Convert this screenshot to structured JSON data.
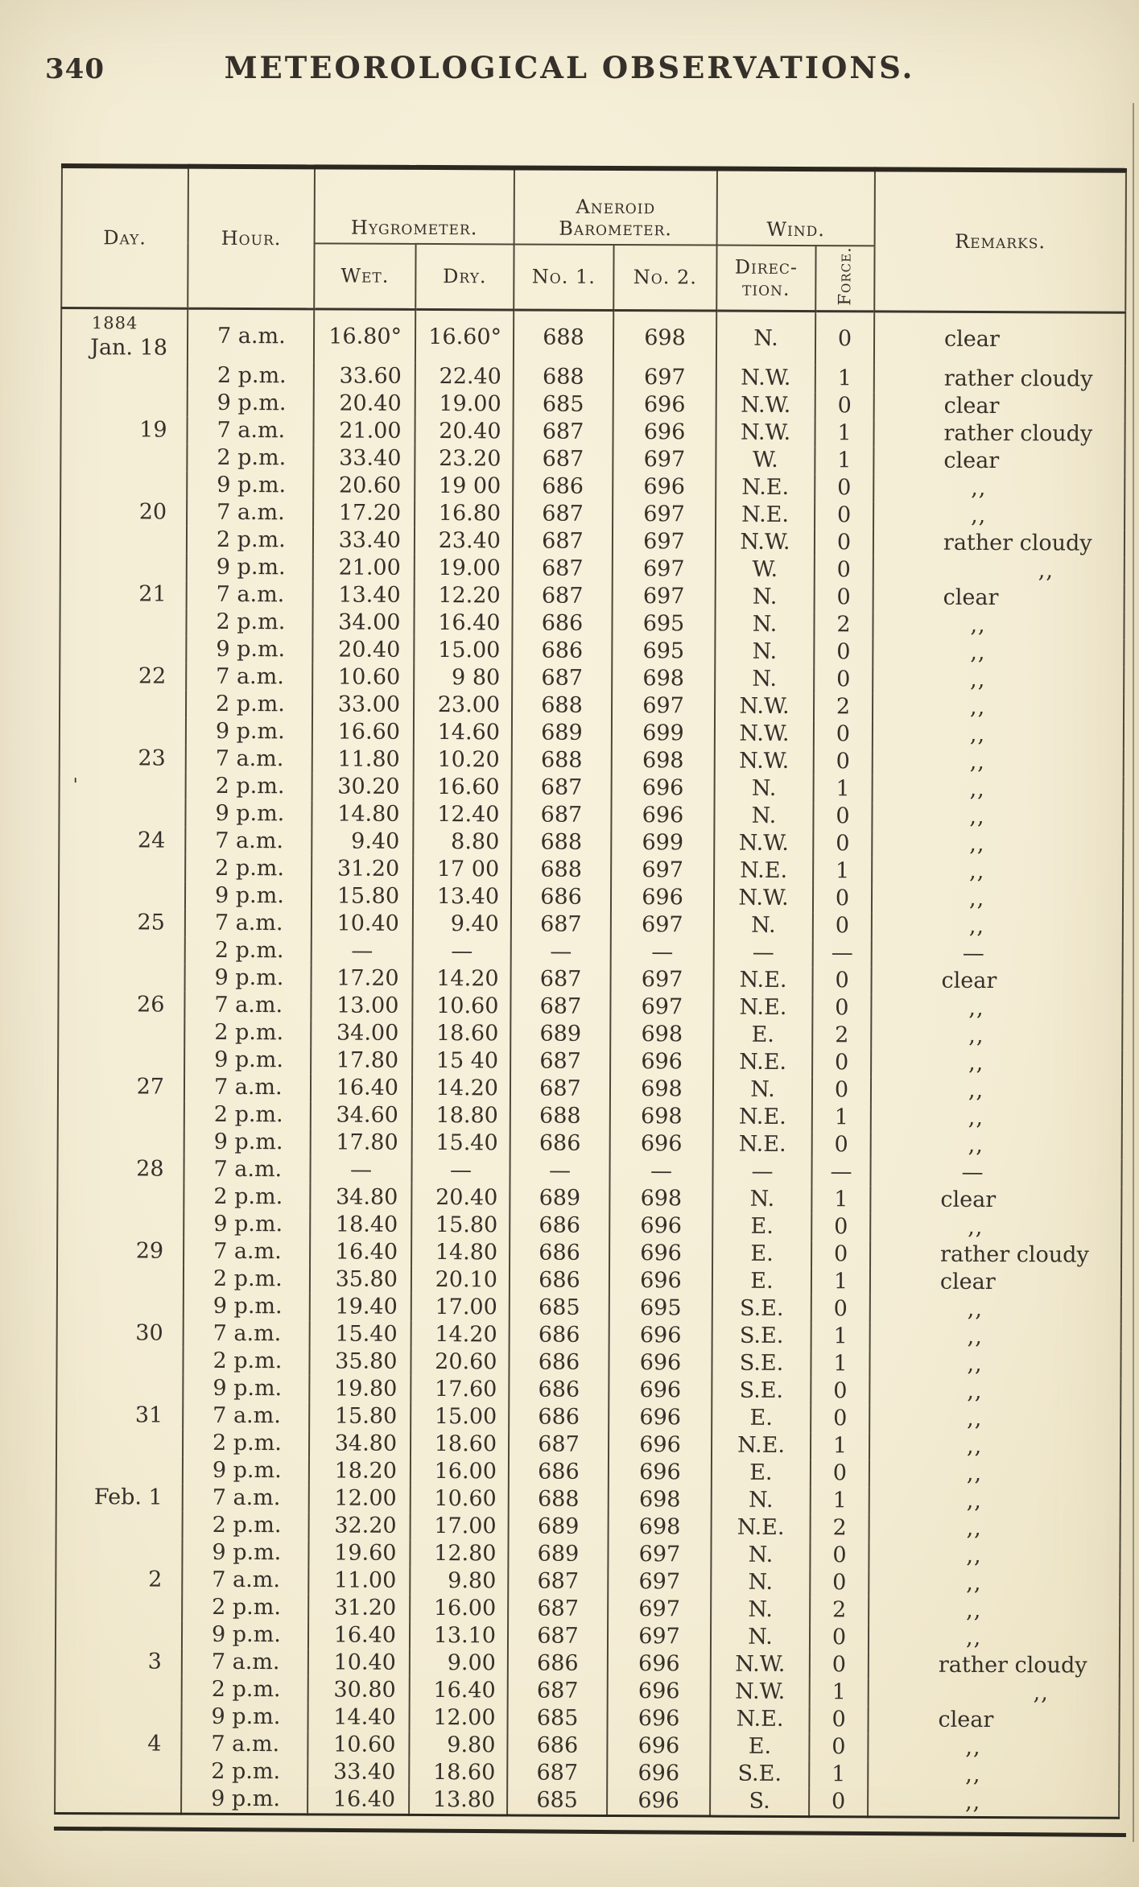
{
  "page": {
    "number": "340",
    "title": "METEOROLOGICAL OBSERVATIONS."
  },
  "table": {
    "headers": {
      "day": "Day.",
      "hour": "Hour.",
      "hygrometer": "Hygrometer.",
      "wet": "Wet.",
      "dry": "Dry.",
      "aneroid_l1": "Aneroid",
      "aneroid_l2": "Barometer.",
      "no1": "No. 1.",
      "no2": "No. 2.",
      "wind": "Wind.",
      "direction_l1": "Direc-",
      "direction_l2": "tion.",
      "force": "Force.",
      "remarks": "Remarks."
    },
    "rows": [
      {
        "y": "1884",
        "d": "Jan. 18",
        "h": "7 a.m.",
        "w": "16.80°",
        "dr": "16.60°",
        "n1": "688",
        "n2": "698",
        "di": "N.",
        "f": "0",
        "r": "clear"
      },
      {
        "d": "",
        "h": "2 p.m.",
        "w": "33.60",
        "dr": "22.40",
        "n1": "688",
        "n2": "697",
        "di": "N.W.",
        "f": "1",
        "r": "rather cloudy"
      },
      {
        "d": "",
        "h": "9 p.m.",
        "w": "20.40",
        "dr": "19.00",
        "n1": "685",
        "n2": "696",
        "di": "N.W.",
        "f": "0",
        "r": "clear"
      },
      {
        "d": "19",
        "h": "7 a.m.",
        "w": "21.00",
        "dr": "20.40",
        "n1": "687",
        "n2": "696",
        "di": "N.W.",
        "f": "1",
        "r": "rather cloudy"
      },
      {
        "d": "",
        "h": "2 p.m.",
        "w": "33.40",
        "dr": "23.20",
        "n1": "687",
        "n2": "697",
        "di": "W.",
        "f": "1",
        "r": "clear"
      },
      {
        "d": "",
        "h": "9 p.m.",
        "w": "20.60",
        "dr": "19 00",
        "n1": "686",
        "n2": "696",
        "di": "N.E.",
        "f": "0",
        "r": ",,"
      },
      {
        "d": "20",
        "h": "7 a.m.",
        "w": "17.20",
        "dr": "16.80",
        "n1": "687",
        "n2": "697",
        "di": "N.E.",
        "f": "0",
        "r": ",,"
      },
      {
        "d": "",
        "h": "2 p.m.",
        "w": "33.40",
        "dr": "23.40",
        "n1": "687",
        "n2": "697",
        "di": "N.W.",
        "f": "0",
        "r": "rather cloudy"
      },
      {
        "d": "",
        "h": "9 p.m.",
        "w": "21.00",
        "dr": "19.00",
        "n1": "687",
        "n2": "697",
        "di": "W.",
        "f": "0",
        "r": ",,",
        "ri": 1
      },
      {
        "d": "21",
        "h": "7 a.m.",
        "w": "13.40",
        "dr": "12.20",
        "n1": "687",
        "n2": "697",
        "di": "N.",
        "f": "0",
        "r": "clear"
      },
      {
        "d": "",
        "h": "2 p.m.",
        "w": "34.00",
        "dr": "16.40",
        "n1": "686",
        "n2": "695",
        "di": "N.",
        "f": "2",
        "r": ",,"
      },
      {
        "d": "",
        "h": "9 p.m.",
        "w": "20.40",
        "dr": "15.00",
        "n1": "686",
        "n2": "695",
        "di": "N.",
        "f": "0",
        "r": ",,"
      },
      {
        "d": "22",
        "h": "7 a.m.",
        "w": "10.60",
        "dr": "9 80",
        "n1": "687",
        "n2": "698",
        "di": "N.",
        "f": "0",
        "r": ",,"
      },
      {
        "d": "",
        "h": "2 p.m.",
        "w": "33.00",
        "dr": "23.00",
        "n1": "688",
        "n2": "697",
        "di": "N.W.",
        "f": "2",
        "r": ",,"
      },
      {
        "d": "",
        "h": "9 p.m.",
        "w": "16.60",
        "dr": "14.60",
        "n1": "689",
        "n2": "699",
        "di": "N.W.",
        "f": "0",
        "r": ",,"
      },
      {
        "d": "23",
        "h": "7 a.m.",
        "w": "11.80",
        "dr": "10.20",
        "n1": "688",
        "n2": "698",
        "di": "N.W.",
        "f": "0",
        "r": ",,"
      },
      {
        "d": "",
        "m": "'",
        "h": "2 p.m.",
        "w": "30.20",
        "dr": "16.60",
        "n1": "687",
        "n2": "696",
        "di": "N.",
        "f": "1",
        "r": ",,"
      },
      {
        "d": "",
        "h": "9 p.m.",
        "w": "14.80",
        "dr": "12.40",
        "n1": "687",
        "n2": "696",
        "di": "N.",
        "f": "0",
        "r": ",,"
      },
      {
        "d": "24",
        "h": "7 a.m.",
        "w": "9.40",
        "dr": "8.80",
        "n1": "688",
        "n2": "699",
        "di": "N.W.",
        "f": "0",
        "r": ",,"
      },
      {
        "d": "",
        "h": "2 p.m.",
        "w": "31.20",
        "dr": "17 00",
        "n1": "688",
        "n2": "697",
        "di": "N.E.",
        "f": "1",
        "r": ",,"
      },
      {
        "d": "",
        "h": "9 p.m.",
        "w": "15.80",
        "dr": "13.40",
        "n1": "686",
        "n2": "696",
        "di": "N.W.",
        "f": "0",
        "r": ",,"
      },
      {
        "d": "25",
        "h": "7 a.m.",
        "w": "10.40",
        "dr": "9.40",
        "n1": "687",
        "n2": "697",
        "di": "N.",
        "f": "0",
        "r": ",,"
      },
      {
        "d": "",
        "h": "2 p.m.",
        "w": "—",
        "dr": "—",
        "n1": "—",
        "n2": "—",
        "di": "—",
        "f": "—",
        "r": "—"
      },
      {
        "d": "",
        "h": "9 p.m.",
        "w": "17.20",
        "dr": "14.20",
        "n1": "687",
        "n2": "697",
        "di": "N.E.",
        "f": "0",
        "r": "clear"
      },
      {
        "d": "26",
        "h": "7 a.m.",
        "w": "13.00",
        "dr": "10.60",
        "n1": "687",
        "n2": "697",
        "di": "N.E.",
        "f": "0",
        "r": ",,"
      },
      {
        "d": "",
        "h": "2 p.m.",
        "w": "34.00",
        "dr": "18.60",
        "n1": "689",
        "n2": "698",
        "di": "E.",
        "f": "2",
        "r": ",,"
      },
      {
        "d": "",
        "h": "9 p.m.",
        "w": "17.80",
        "dr": "15 40",
        "n1": "687",
        "n2": "696",
        "di": "N.E.",
        "f": "0",
        "r": ",,"
      },
      {
        "d": "27",
        "h": "7 a.m.",
        "w": "16.40",
        "dr": "14.20",
        "n1": "687",
        "n2": "698",
        "di": "N.",
        "f": "0",
        "r": ",,"
      },
      {
        "d": "",
        "h": "2 p.m.",
        "w": "34.60",
        "dr": "18.80",
        "n1": "688",
        "n2": "698",
        "di": "N.E.",
        "f": "1",
        "r": ",,"
      },
      {
        "d": "",
        "h": "9 p.m.",
        "w": "17.80",
        "dr": "15.40",
        "n1": "686",
        "n2": "696",
        "di": "N.E.",
        "f": "0",
        "r": ",,"
      },
      {
        "d": "28",
        "h": "7 a.m.",
        "w": "—",
        "dr": "—",
        "n1": "—",
        "n2": "—",
        "di": "—",
        "f": "—",
        "r": "—"
      },
      {
        "d": "",
        "h": "2 p.m.",
        "w": "34.80",
        "dr": "20.40",
        "n1": "689",
        "n2": "698",
        "di": "N.",
        "f": "1",
        "r": "clear"
      },
      {
        "d": "",
        "h": "9 p.m.",
        "w": "18.40",
        "dr": "15.80",
        "n1": "686",
        "n2": "696",
        "di": "E.",
        "f": "0",
        "r": ",,"
      },
      {
        "d": "29",
        "h": "7 a.m.",
        "w": "16.40",
        "dr": "14.80",
        "n1": "686",
        "n2": "696",
        "di": "E.",
        "f": "0",
        "r": "rather cloudy"
      },
      {
        "d": "",
        "h": "2 p.m.",
        "w": "35.80",
        "dr": "20.10",
        "n1": "686",
        "n2": "696",
        "di": "E.",
        "f": "1",
        "r": "clear"
      },
      {
        "d": "",
        "h": "9 p.m.",
        "w": "19.40",
        "dr": "17.00",
        "n1": "685",
        "n2": "695",
        "di": "S.E.",
        "f": "0",
        "r": ",,"
      },
      {
        "d": "30",
        "h": "7 a.m.",
        "w": "15.40",
        "dr": "14.20",
        "n1": "686",
        "n2": "696",
        "di": "S.E.",
        "f": "1",
        "r": ",,"
      },
      {
        "d": "",
        "h": "2 p.m.",
        "w": "35.80",
        "dr": "20.60",
        "n1": "686",
        "n2": "696",
        "di": "S.E.",
        "f": "1",
        "r": ",,"
      },
      {
        "d": "",
        "h": "9 p.m.",
        "w": "19.80",
        "dr": "17.60",
        "n1": "686",
        "n2": "696",
        "di": "S.E.",
        "f": "0",
        "r": ",,"
      },
      {
        "d": "31",
        "h": "7 a.m.",
        "w": "15.80",
        "dr": "15.00",
        "n1": "686",
        "n2": "696",
        "di": "E.",
        "f": "0",
        "r": ",,"
      },
      {
        "d": "",
        "h": "2 p.m.",
        "w": "34.80",
        "dr": "18.60",
        "n1": "687",
        "n2": "696",
        "di": "N.E.",
        "f": "1",
        "r": ",,"
      },
      {
        "d": "",
        "h": "9 p.m.",
        "w": "18.20",
        "dr": "16.00",
        "n1": "686",
        "n2": "696",
        "di": "E.",
        "f": "0",
        "r": ",,"
      },
      {
        "d": "Feb. 1",
        "h": "7 a.m.",
        "w": "12.00",
        "dr": "10.60",
        "n1": "688",
        "n2": "698",
        "di": "N.",
        "f": "1",
        "r": ",,"
      },
      {
        "d": "",
        "h": "2 p.m.",
        "w": "32.20",
        "dr": "17.00",
        "n1": "689",
        "n2": "698",
        "di": "N.E.",
        "f": "2",
        "r": ",,"
      },
      {
        "d": "",
        "h": "9 p.m.",
        "w": "19.60",
        "dr": "12.80",
        "n1": "689",
        "n2": "697",
        "di": "N.",
        "f": "0",
        "r": ",,"
      },
      {
        "d": "2",
        "h": "7 a.m.",
        "w": "11.00",
        "dr": "9.80",
        "n1": "687",
        "n2": "697",
        "di": "N.",
        "f": "0",
        "r": ",,"
      },
      {
        "d": "",
        "h": "2 p.m.",
        "w": "31.20",
        "dr": "16.00",
        "n1": "687",
        "n2": "697",
        "di": "N.",
        "f": "2",
        "r": ",,"
      },
      {
        "d": "",
        "h": "9 p.m.",
        "w": "16.40",
        "dr": "13.10",
        "n1": "687",
        "n2": "697",
        "di": "N.",
        "f": "0",
        "r": ",,"
      },
      {
        "d": "3",
        "h": "7 a.m.",
        "w": "10.40",
        "dr": "9.00",
        "n1": "686",
        "n2": "696",
        "di": "N.W.",
        "f": "0",
        "r": "rather cloudy"
      },
      {
        "d": "",
        "h": "2 p.m.",
        "w": "30.80",
        "dr": "16.40",
        "n1": "687",
        "n2": "696",
        "di": "N.W.",
        "f": "1",
        "r": ",,",
        "ri": 1
      },
      {
        "d": "",
        "h": "9 p.m.",
        "w": "14.40",
        "dr": "12.00",
        "n1": "685",
        "n2": "696",
        "di": "N.E.",
        "f": "0",
        "r": "clear"
      },
      {
        "d": "4",
        "h": "7 a.m.",
        "w": "10.60",
        "dr": "9.80",
        "n1": "686",
        "n2": "696",
        "di": "E.",
        "f": "0",
        "r": ",,"
      },
      {
        "d": "",
        "h": "2 p.m.",
        "w": "33.40",
        "dr": "18.60",
        "n1": "687",
        "n2": "696",
        "di": "S.E.",
        "f": "1",
        "r": ",,"
      },
      {
        "d": "",
        "h": "9 p.m.",
        "w": "16.40",
        "dr": "13.80",
        "n1": "685",
        "n2": "696",
        "di": "S.",
        "f": "0",
        "r": ",,"
      }
    ]
  }
}
